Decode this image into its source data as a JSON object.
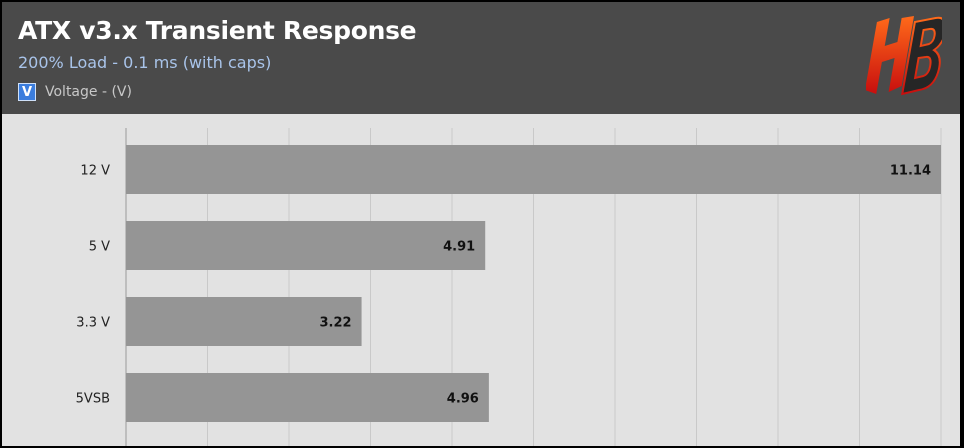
{
  "header": {
    "title": "ATX v3.x Transient Response",
    "subtitle": "200% Load - 0.1 ms (with caps)"
  },
  "legend": {
    "swatch_text": "V",
    "label": "Voltage - (V)",
    "color": "#3b7ddd"
  },
  "logo": {
    "icon": "hb-logo-icon",
    "text": "HB",
    "color_top": "#ff6a1a",
    "color_bottom": "#c80e0e"
  },
  "chart_data": {
    "type": "bar",
    "orientation": "horizontal",
    "title": "ATX v3.x Transient Response",
    "subtitle": "200% Load - 0.1 ms (with caps)",
    "categories": [
      "12 V",
      "5 V",
      "3.3 V",
      "5VSB"
    ],
    "series": [
      {
        "name": "Voltage - (V)",
        "values": [
          11.14,
          4.91,
          3.22,
          4.96
        ],
        "labels": [
          "11.14",
          "4.91",
          "3.22",
          "4.96"
        ]
      }
    ],
    "xlim": [
      0,
      11.14
    ],
    "grid": true,
    "legend_position": "top-left",
    "bar_color": "#959595",
    "background_color": "#e2e2e2"
  }
}
